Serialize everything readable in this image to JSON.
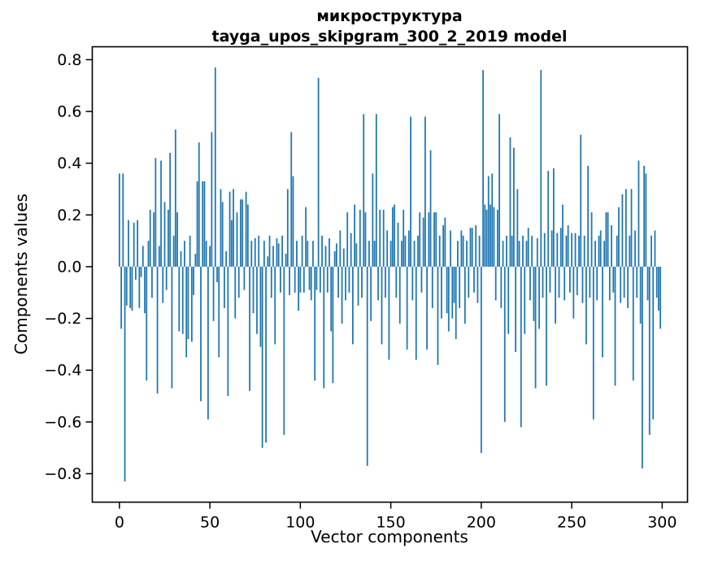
{
  "figure": {
    "title_line1": "микроструктура",
    "title_line2": "tayga_upos_skipgram_300_2_2019 model",
    "xlabel": "Vector components",
    "ylabel": "Components values"
  },
  "chart_data": {
    "type": "bar",
    "title": "микроструктура — tayga_upos_skipgram_300_2_2019 model",
    "xlabel": "Vector components",
    "ylabel": "Components values",
    "bar_color": "#1f77b4",
    "grid": false,
    "legend": null,
    "xlim": [
      -15,
      314
    ],
    "ylim": [
      -0.91,
      0.85
    ],
    "xticks": [
      0,
      50,
      100,
      150,
      200,
      250,
      300
    ],
    "xtick_labels": [
      "0",
      "50",
      "100",
      "150",
      "200",
      "250",
      "300"
    ],
    "yticks": [
      -0.8,
      -0.6,
      -0.4,
      -0.2,
      0.0,
      0.2,
      0.4,
      0.6,
      0.8
    ],
    "ytick_labels": [
      "−0.8",
      "−0.6",
      "−0.4",
      "−0.2",
      "0.0",
      "0.2",
      "0.4",
      "0.6",
      "0.8"
    ],
    "x_start": 0,
    "values": [
      0.36,
      -0.24,
      0.36,
      -0.83,
      -0.15,
      0.18,
      -0.16,
      -0.17,
      0.17,
      -0.05,
      0.18,
      -0.16,
      -0.04,
      0.08,
      -0.18,
      -0.44,
      0.1,
      0.22,
      -0.12,
      0.21,
      0.42,
      -0.49,
      0.08,
      0.41,
      -0.14,
      0.25,
      -0.09,
      0.22,
      0.44,
      -0.47,
      0.12,
      0.53,
      0.21,
      -0.25,
      0.06,
      -0.26,
      0.1,
      -0.35,
      -0.28,
      0.12,
      -0.29,
      -0.11,
      0.05,
      0.33,
      0.48,
      -0.52,
      0.33,
      0.33,
      0.1,
      -0.59,
      0.08,
      0.52,
      -0.21,
      0.77,
      -0.06,
      -0.35,
      0.3,
      0.25,
      -0.16,
      0.06,
      -0.5,
      0.29,
      0.18,
      0.3,
      -0.2,
      0.21,
      -0.12,
      0.26,
      0.26,
      -0.09,
      0.29,
      0.24,
      -0.48,
      0.1,
      -0.18,
      0.11,
      -0.26,
      0.12,
      -0.31,
      -0.7,
      0.1,
      -0.68,
      0.04,
      0.12,
      -0.12,
      0.08,
      -0.3,
      0.11,
      0.09,
      -0.1,
      0.12,
      -0.65,
      0.05,
      0.3,
      -0.11,
      0.52,
      0.35,
      -0.1,
      0.1,
      -0.17,
      -0.1,
      0.12,
      -0.1,
      0.23,
      0.1,
      -0.09,
      -0.13,
      0.1,
      -0.44,
      -0.09,
      0.73,
      -0.1,
      0.12,
      -0.47,
      0.08,
      -0.1,
      0.11,
      -0.25,
      -0.45,
      0.06,
      0.09,
      -0.12,
      0.14,
      -0.22,
      0.07,
      -0.13,
      0.21,
      -0.1,
      0.13,
      -0.3,
      0.24,
      0.09,
      -0.15,
      0.22,
      -0.12,
      0.59,
      0.21,
      -0.77,
      0.1,
      -0.21,
      0.36,
      0.1,
      0.59,
      -0.13,
      0.22,
      -0.3,
      0.22,
      -0.12,
      0.14,
      -0.36,
      0.1,
      0.23,
      0.24,
      -0.12,
      0.17,
      -0.22,
      0.1,
      0.22,
      0.12,
      -0.32,
      0.14,
      0.58,
      -0.13,
      0.1,
      -0.36,
      0.12,
      0.21,
      -0.1,
      0.19,
      0.58,
      -0.32,
      0.21,
      0.45,
      -0.16,
      0.21,
      0.21,
      -0.38,
      0.12,
      -0.2,
      0.16,
      0.19,
      -0.18,
      -0.25,
      0.14,
      -0.2,
      -0.14,
      -0.28,
      0.1,
      -0.16,
      0.14,
      0.12,
      -0.22,
      0.1,
      -0.12,
      0.15,
      0.15,
      -0.1,
      0.16,
      -0.14,
      0.12,
      -0.72,
      0.76,
      0.24,
      0.22,
      0.35,
      0.24,
      0.36,
      0.23,
      -0.13,
      0.22,
      0.59,
      -0.16,
      0.1,
      -0.6,
      0.12,
      -0.26,
      0.5,
      0.12,
      0.46,
      -0.33,
      0.3,
      0.1,
      -0.62,
      0.12,
      -0.26,
      0.1,
      0.15,
      -0.13,
      0.12,
      -0.21,
      -0.47,
      0.11,
      -0.24,
      0.76,
      -0.12,
      0.13,
      -0.46,
      0.37,
      -0.1,
      0.14,
      0.38,
      -0.22,
      0.13,
      -0.12,
      0.15,
      0.24,
      -0.13,
      0.12,
      0.16,
      -0.1,
      0.13,
      -0.2,
      0.13,
      -0.11,
      0.12,
      0.51,
      -0.14,
      0.12,
      -0.3,
      0.39,
      -0.12,
      0.21,
      -0.59,
      0.1,
      -0.13,
      0.12,
      0.14,
      -0.35,
      0.1,
      0.21,
      0.21,
      -0.13,
      0.16,
      -0.1,
      -0.46,
      0.12,
      0.23,
      -0.14,
      0.28,
      -0.12,
      0.3,
      -0.16,
      0.12,
      0.3,
      -0.44,
      0.14,
      -0.12,
      0.41,
      -0.22,
      -0.78,
      0.39,
      0.36,
      -0.13,
      -0.65,
      0.12,
      -0.59,
      0.14,
      -0.12,
      -0.17,
      -0.24
    ]
  }
}
